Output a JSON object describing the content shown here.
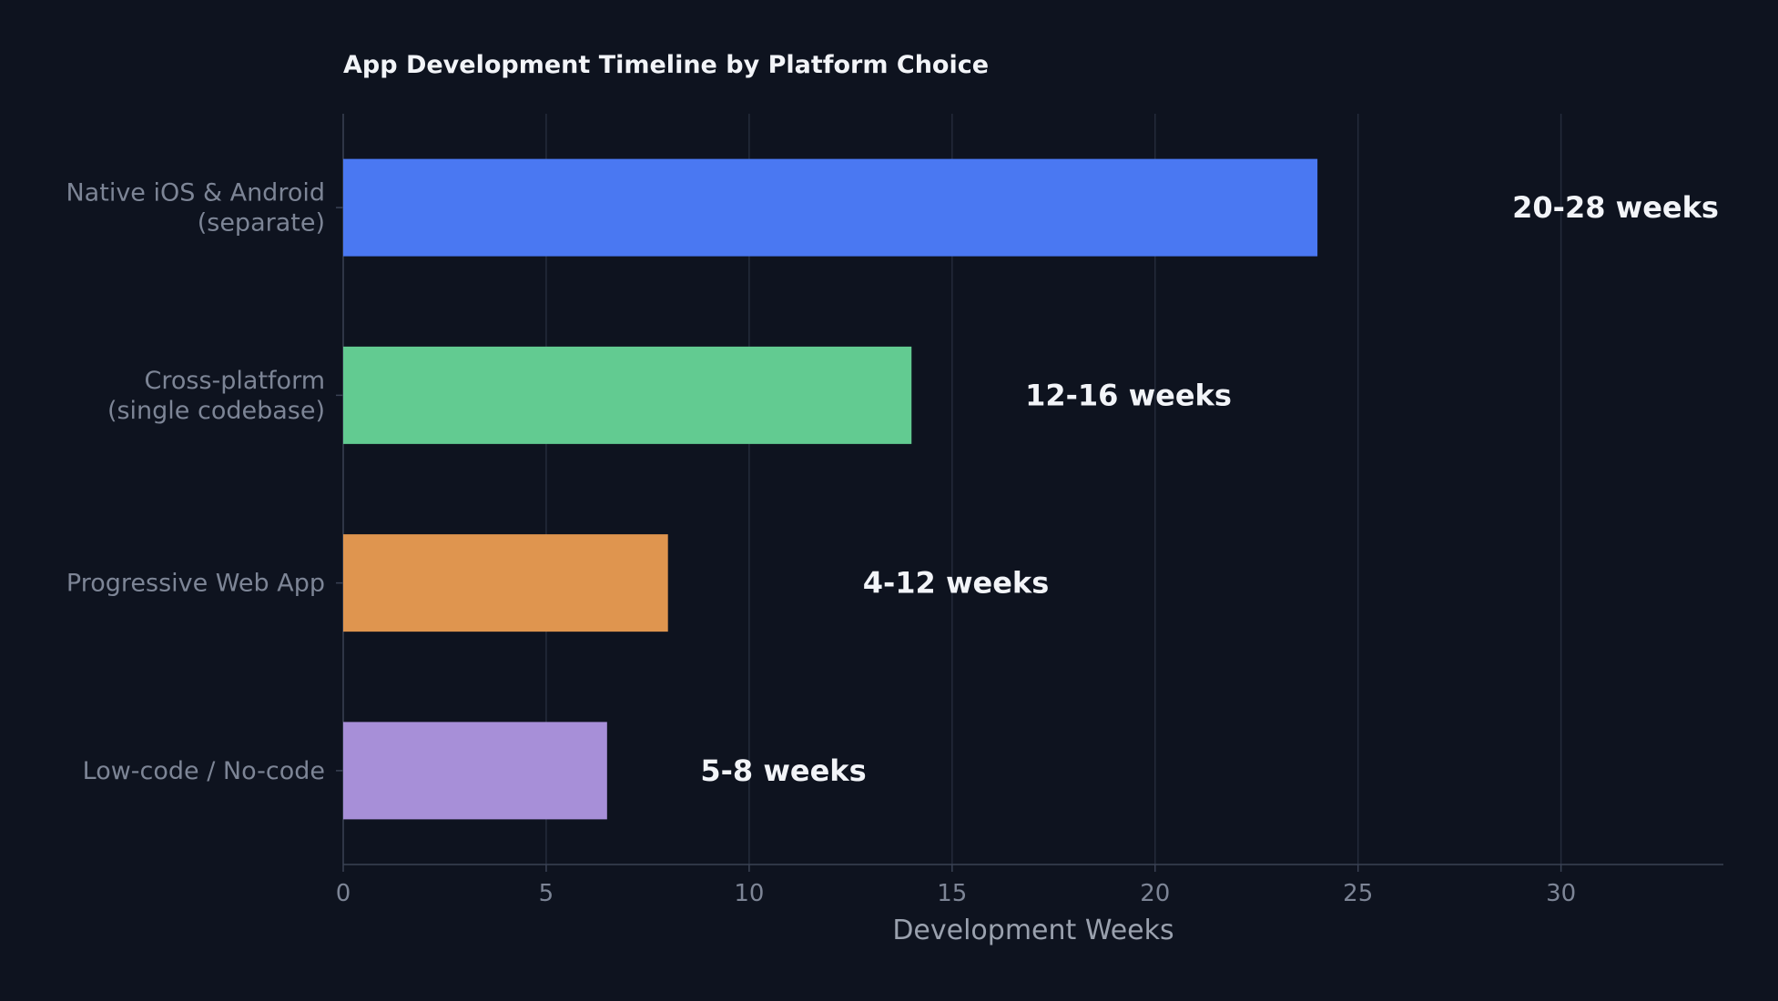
{
  "chart_data": {
    "type": "bar",
    "orientation": "horizontal",
    "title": "App Development Timeline by Platform Choice",
    "xlabel": "Development Weeks",
    "ylabel": "",
    "xlim": [
      0,
      34
    ],
    "xticks": [
      0,
      5,
      10,
      15,
      20,
      25,
      30
    ],
    "grid": true,
    "categories": [
      [
        "Native iOS & Android",
        "(separate)"
      ],
      [
        "Cross-platform",
        "(single codebase)"
      ],
      [
        "Progressive Web App"
      ],
      [
        "Low-code / No-code"
      ]
    ],
    "values": [
      24,
      14,
      8,
      6.5
    ],
    "data_labels": [
      "20-28 weeks",
      "12-16 weeks",
      "4-12 weeks",
      "5-8 weeks"
    ],
    "label_x": [
      28.8,
      16.8,
      12.8,
      8.8
    ],
    "colors": [
      "#4a78f2",
      "#62cb91",
      "#df954f",
      "#a78fd8"
    ]
  }
}
